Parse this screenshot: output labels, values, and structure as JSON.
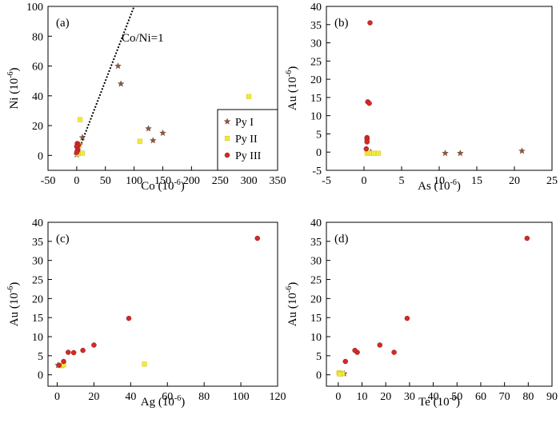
{
  "legend": {
    "items": [
      {
        "label": "Py I",
        "marker": "star",
        "color": "#8B5A3C"
      },
      {
        "label": "Py II",
        "marker": "square",
        "color": "#F2EA3A"
      },
      {
        "label": "Py III",
        "marker": "circle",
        "color": "#D42A25"
      }
    ]
  },
  "chart_data": [
    {
      "panel": "(a)",
      "type": "scatter",
      "xlabel": "Co (10",
      "ylabel": "Ni (10",
      "unit_exp": "-6",
      "xlim": [
        -50,
        350
      ],
      "ylim": [
        -10,
        100
      ],
      "xticks": [
        -50,
        0,
        50,
        100,
        150,
        200,
        250,
        300,
        350
      ],
      "yticks": [
        0,
        20,
        40,
        60,
        80,
        100
      ],
      "annotation": "Co/Ni=1",
      "reference_line": {
        "slope": 1,
        "from": [
          0,
          0
        ],
        "to": [
          100,
          100
        ],
        "style": "dotted"
      },
      "series": [
        {
          "name": "Py I",
          "marker": "star",
          "color": "#8B5A3C",
          "points": [
            [
              72,
              60
            ],
            [
              77,
              48
            ],
            [
              125,
              18
            ],
            [
              133,
              10
            ],
            [
              150,
              15
            ],
            [
              10,
              12
            ],
            [
              5,
              7
            ],
            [
              2,
              2
            ],
            [
              0,
              0.5
            ]
          ]
        },
        {
          "name": "Py II",
          "marker": "square",
          "color": "#F2EA3A",
          "points": [
            [
              6,
              24
            ],
            [
              10,
              1.5
            ],
            [
              110,
              9.5
            ],
            [
              300,
              39.5
            ],
            [
              2,
              1
            ],
            [
              4,
              7
            ]
          ]
        },
        {
          "name": "Py III",
          "marker": "circle",
          "color": "#D42A25",
          "points": [
            [
              1,
              8
            ],
            [
              3,
              7
            ],
            [
              0,
              6
            ],
            [
              2,
              4
            ],
            [
              1,
              3
            ],
            [
              0,
              2
            ]
          ]
        }
      ]
    },
    {
      "panel": "(b)",
      "type": "scatter",
      "xlabel": "As (10",
      "ylabel": "Au (10",
      "unit_exp": "-6",
      "xlim": [
        -5,
        25
      ],
      "ylim": [
        -5,
        40
      ],
      "xticks": [
        -5,
        0,
        5,
        10,
        15,
        20,
        25
      ],
      "yticks": [
        -5,
        0,
        5,
        10,
        15,
        20,
        25,
        30,
        35,
        40
      ],
      "series": [
        {
          "name": "Py I",
          "marker": "star",
          "color": "#8B5A3C",
          "points": [
            [
              10.8,
              -0.3
            ],
            [
              12.8,
              -0.3
            ],
            [
              21,
              0.3
            ],
            [
              0.9,
              0
            ]
          ]
        },
        {
          "name": "Py II",
          "marker": "square",
          "color": "#F2EA3A",
          "points": [
            [
              0.4,
              -0.3
            ],
            [
              0.7,
              -0.3
            ],
            [
              1.0,
              -0.3
            ],
            [
              1.3,
              -0.3
            ],
            [
              1.9,
              -0.3
            ]
          ]
        },
        {
          "name": "Py III",
          "marker": "circle",
          "color": "#D42A25",
          "points": [
            [
              0.8,
              35.5
            ],
            [
              0.5,
              13.8
            ],
            [
              0.7,
              13.4
            ],
            [
              0.4,
              4.0
            ],
            [
              0.4,
              3.5
            ],
            [
              0.4,
              2.8
            ],
            [
              0.3,
              0.9
            ]
          ]
        }
      ]
    },
    {
      "panel": "(c)",
      "type": "scatter",
      "xlabel": "Ag (10",
      "ylabel": "Au (10",
      "unit_exp": "-6",
      "xlim": [
        -5,
        120
      ],
      "ylim": [
        -3,
        40
      ],
      "xticks": [
        0,
        20,
        40,
        60,
        80,
        100,
        120
      ],
      "yticks": [
        0,
        5,
        10,
        15,
        20,
        25,
        30,
        35,
        40
      ],
      "series": [
        {
          "name": "Py I",
          "marker": "star",
          "color": "#8B5A3C",
          "points": [
            [
              0.5,
              2.5
            ]
          ]
        },
        {
          "name": "Py II",
          "marker": "square",
          "color": "#F2EA3A",
          "points": [
            [
              47.5,
              2.8
            ],
            [
              2.5,
              2.4
            ],
            [
              3.5,
              2.6
            ]
          ]
        },
        {
          "name": "Py III",
          "marker": "circle",
          "color": "#D42A25",
          "points": [
            [
              109,
              35.8
            ],
            [
              39,
              14.8
            ],
            [
              20,
              7.8
            ],
            [
              14,
              6.4
            ],
            [
              9,
              5.8
            ],
            [
              6,
              5.9
            ],
            [
              3.5,
              3.5
            ],
            [
              1,
              2.5
            ]
          ]
        }
      ]
    },
    {
      "panel": "(d)",
      "type": "scatter",
      "xlabel": "Te (10",
      "ylabel": "Au (10",
      "unit_exp": "-6",
      "xlim": [
        -5,
        90
      ],
      "ylim": [
        -3,
        40
      ],
      "xticks": [
        0,
        10,
        20,
        30,
        40,
        50,
        60,
        70,
        80,
        90
      ],
      "yticks": [
        0,
        5,
        10,
        15,
        20,
        25,
        30,
        35,
        40
      ],
      "series": [
        {
          "name": "Py I",
          "marker": "star",
          "color": "#8B5A3C",
          "points": [
            [
              2.5,
              0.3
            ]
          ]
        },
        {
          "name": "Py II",
          "marker": "square",
          "color": "#F2EA3A",
          "points": [
            [
              0.3,
              0.5
            ],
            [
              1.0,
              0.4
            ],
            [
              1.8,
              0.3
            ],
            [
              0.6,
              0.2
            ]
          ]
        },
        {
          "name": "Py III",
          "marker": "circle",
          "color": "#D42A25",
          "points": [
            [
              79.5,
              35.8
            ],
            [
              29,
              14.8
            ],
            [
              23.5,
              5.9
            ],
            [
              17.5,
              7.8
            ],
            [
              8,
              5.9
            ],
            [
              7,
              6.4
            ],
            [
              3,
              3.5
            ]
          ]
        }
      ]
    }
  ]
}
